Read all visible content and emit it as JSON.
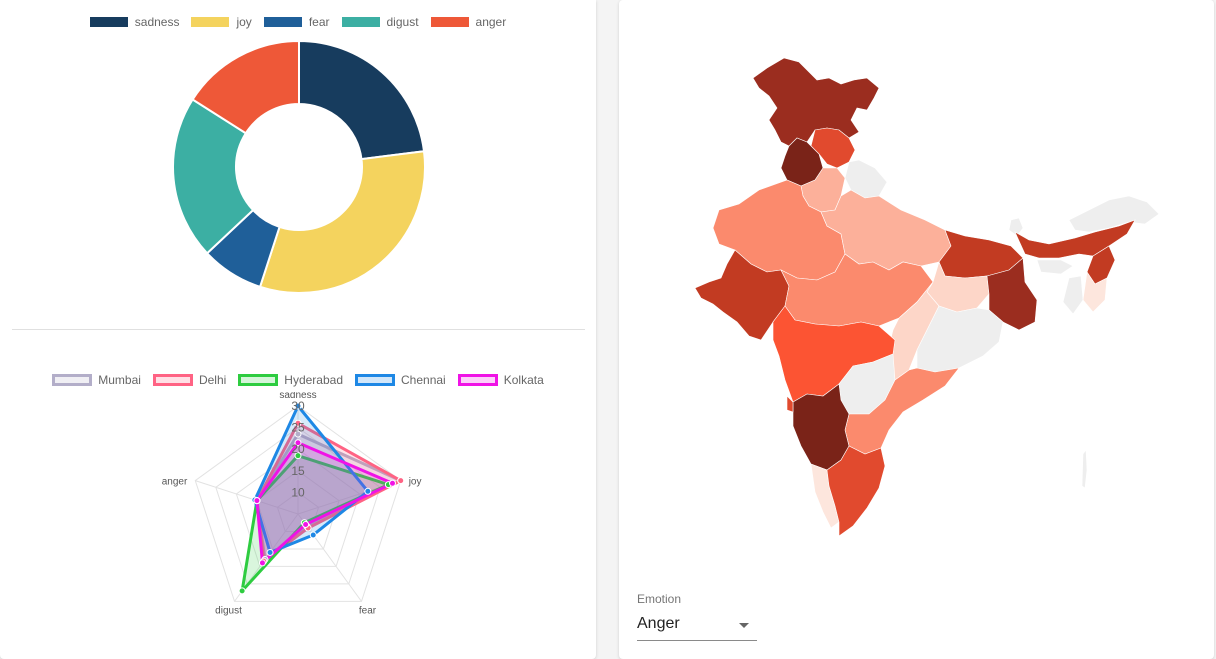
{
  "colors": {
    "sadness": "#173c5e",
    "joy": "#f4d35e",
    "fear": "#1f5f99",
    "digust": "#3cafa3",
    "anger": "#ee5838"
  },
  "chart_data": [
    {
      "type": "pie",
      "donut": true,
      "categories": [
        "sadness",
        "joy",
        "fear",
        "digust",
        "anger"
      ],
      "values": [
        23,
        32,
        8,
        21,
        16
      ],
      "legend_position": "top"
    },
    {
      "type": "radar",
      "axes": [
        "sadness",
        "joy",
        "fear",
        "digust",
        "anger"
      ],
      "r_ticks": [
        10,
        15,
        20,
        25,
        30
      ],
      "r_range": [
        5,
        30
      ],
      "legend_position": "top",
      "series": [
        {
          "name": "Mumbai",
          "color": "#b3aec9",
          "values": [
            23.5,
            30,
            8.5,
            18,
            15
          ]
        },
        {
          "name": "Delhi",
          "color": "#ff6384",
          "values": [
            26,
            30,
            9,
            18.5,
            15
          ]
        },
        {
          "name": "Hyderabad",
          "color": "#2ecc40",
          "values": [
            18.5,
            27,
            7.5,
            27,
            15
          ]
        },
        {
          "name": "Chennai",
          "color": "#1e88e5",
          "values": [
            30,
            22,
            11,
            16,
            15.5
          ]
        },
        {
          "name": "Kolkata",
          "color": "#f013e6",
          "values": [
            21.5,
            28,
            8,
            19,
            15
          ]
        }
      ]
    }
  ],
  "map": {
    "emotion_label": "Emotion",
    "selected_emotion": "Anger",
    "colors": [
      "#8b2b1e",
      "#c23b22",
      "#fc5433",
      "#fb8a6d",
      "#fcb09a",
      "#fdd6c8",
      "#eeeeee"
    ]
  }
}
